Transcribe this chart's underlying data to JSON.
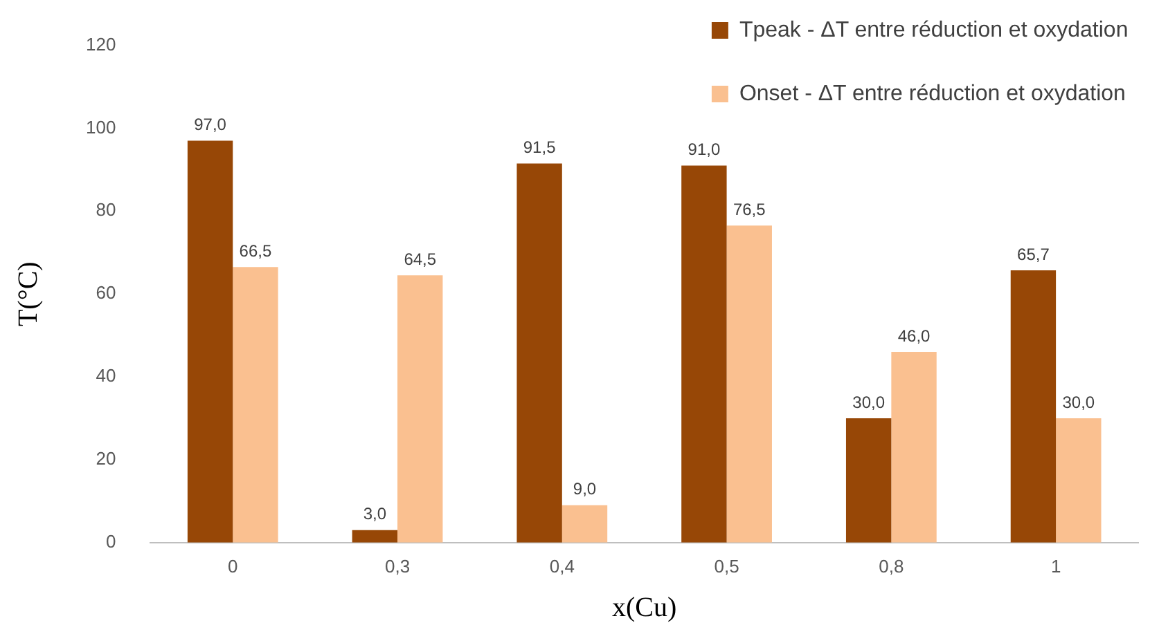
{
  "chart_data": {
    "type": "bar",
    "xlabel": "x(Cu)",
    "ylabel": "T(°C)",
    "categories": [
      "0",
      "0,3",
      "0,4",
      "0,5",
      "0,8",
      "1"
    ],
    "series": [
      {
        "name": "Tpeak - ΔT entre réduction et oxydation",
        "color": "#974706",
        "values": [
          97.0,
          3.0,
          91.5,
          91.0,
          30.0,
          65.7
        ],
        "value_labels": [
          "97,0",
          "3,0",
          "91,5",
          "91,0",
          "30,0",
          "65,7"
        ]
      },
      {
        "name": "Onset - ΔT entre réduction et oxydation",
        "color": "#fac090",
        "values": [
          66.5,
          64.5,
          9.0,
          76.5,
          46.0,
          30.0
        ],
        "value_labels": [
          "66,5",
          "64,5",
          "9,0",
          "76,5",
          "46,0",
          "30,0"
        ]
      }
    ],
    "ylim": [
      0,
      120
    ],
    "yticks": [
      0,
      20,
      40,
      60,
      80,
      100,
      120
    ],
    "grid": false,
    "legend": "top right"
  }
}
